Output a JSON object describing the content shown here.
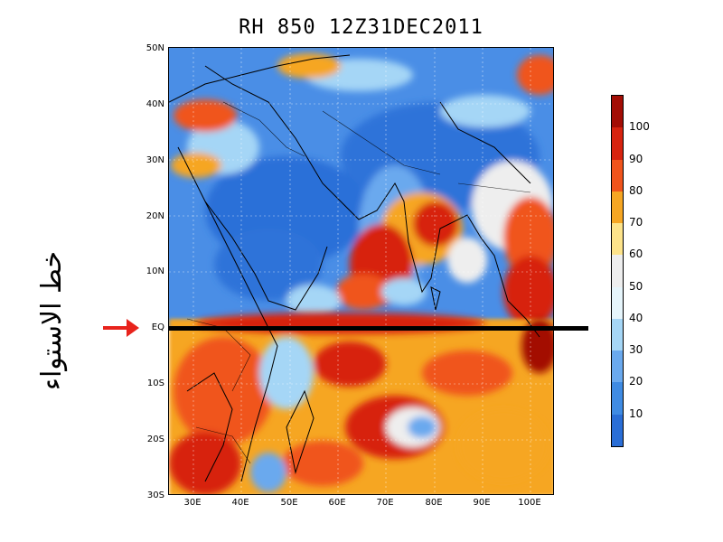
{
  "title": "RH 850 12Z31DEC2011",
  "side_label": "خط الاستواء",
  "y_axis_labels": [
    "50N",
    "40N",
    "30N",
    "20N",
    "10N",
    "EQ",
    "10S",
    "20S",
    "30S"
  ],
  "x_axis_labels": [
    "30E",
    "40E",
    "50E",
    "60E",
    "70E",
    "80E",
    "90E",
    "100E"
  ],
  "colorbar": {
    "labels": [
      "10",
      "20",
      "30",
      "40",
      "50",
      "60",
      "70",
      "80",
      "90",
      "100"
    ],
    "colors": [
      "#2a6ed6",
      "#3f8be3",
      "#6aa9ee",
      "#a5d6f6",
      "#e6f5fb",
      "#eeeeee",
      "#fde38a",
      "#f6a623",
      "#f0541c",
      "#d7230f",
      "#a30d05"
    ]
  },
  "arrow_color": "#e8231c",
  "map": {
    "region": "Indian Ocean / South Asia",
    "variable": "relative humidity at 850 hPa",
    "lat_range": [
      -30,
      50
    ],
    "lon_range": [
      25,
      105
    ]
  }
}
